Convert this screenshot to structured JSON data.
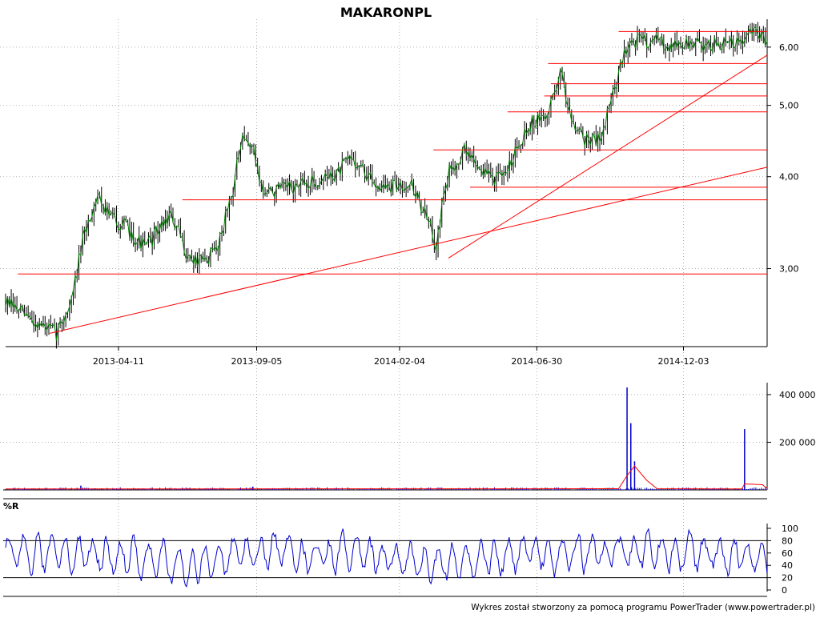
{
  "title": "MAKARONPL",
  "footer": "Wykres został stworzony za pomocą programu PowerTrader (www.powertrader.pl)",
  "colors": {
    "price_up": "#008000",
    "price_bar": "#000000",
    "lines": "#ff0000",
    "volume": "#0000cc",
    "volume_avg": "#ff0000",
    "williams": "#0000cc",
    "grid": "#b0b0b0"
  },
  "chart_data": [
    {
      "type": "line",
      "panel": "price",
      "title": "MAKARONPL",
      "y_scale": "log",
      "ylim": [
        2.35,
        6.45
      ],
      "y_ticks": [
        3,
        4,
        5,
        6
      ],
      "y_tick_labels": [
        "3,00",
        "4,00",
        "5,00",
        "6,00"
      ],
      "x_range": [
        "2012-12-12",
        "2015-03-02"
      ],
      "x_ticks": [
        "2013-04-11",
        "2013-09-05",
        "2014-02-04",
        "2014-06-30",
        "2014-12-03"
      ],
      "grid": true,
      "series": [
        {
          "x": [
            "2012-12-12",
            "2013-01-10",
            "2013-02-04",
            "2013-02-20",
            "2013-03-05",
            "2013-03-20",
            "2013-04-01",
            "2013-04-15",
            "2013-05-10",
            "2013-06-05",
            "2013-06-25",
            "2013-07-10",
            "2013-07-25",
            "2013-08-10",
            "2013-08-20",
            "2013-08-30",
            "2013-09-12",
            "2013-10-10",
            "2013-11-10",
            "2013-12-01",
            "2013-12-15",
            "2014-01-05",
            "2014-01-25",
            "2014-02-15",
            "2014-03-03",
            "2014-03-15",
            "2014-03-28",
            "2014-04-15",
            "2014-05-05",
            "2014-05-25",
            "2014-06-10",
            "2014-06-25",
            "2014-07-10",
            "2014-07-25",
            "2014-08-05",
            "2014-08-20",
            "2014-09-05",
            "2014-09-20",
            "2014-10-05",
            "2014-10-20",
            "2014-11-05",
            "2014-11-20",
            "2014-12-05",
            "2014-12-20",
            "2015-01-10",
            "2015-01-30",
            "2015-02-15",
            "2015-02-28"
          ],
          "values": [
            2.7,
            2.55,
            2.45,
            2.7,
            3.3,
            3.8,
            3.55,
            3.45,
            3.2,
            3.55,
            3.1,
            3.05,
            3.2,
            3.8,
            4.45,
            4.45,
            3.8,
            3.85,
            3.95,
            4.05,
            4.25,
            3.95,
            3.85,
            3.95,
            3.55,
            3.25,
            4.05,
            4.35,
            4.05,
            3.95,
            4.45,
            4.75,
            4.8,
            5.55,
            4.85,
            4.5,
            4.5,
            5.2,
            6.1,
            6.15,
            6.1,
            6.05,
            6.05,
            6.05,
            6.05,
            6.05,
            6.3,
            6.15
          ]
        }
      ],
      "lines": [
        {
          "kind": "trend",
          "from": [
            "2013-01-28",
            2.45
          ],
          "to": [
            "2015-03-02",
            4.12
          ]
        },
        {
          "kind": "trend",
          "from": [
            "2014-03-28",
            3.1
          ],
          "to": [
            "2015-03-02",
            5.85
          ]
        },
        {
          "kind": "level",
          "value": 2.95,
          "from": "2012-12-25",
          "to": "2015-03-02"
        },
        {
          "kind": "level",
          "value": 3.72,
          "from": "2013-06-18",
          "to": "2015-03-02"
        },
        {
          "kind": "level",
          "value": 3.87,
          "from": "2014-04-20",
          "to": "2015-03-02"
        },
        {
          "kind": "level",
          "value": 4.35,
          "from": "2014-03-12",
          "to": "2015-03-02"
        },
        {
          "kind": "level",
          "value": 4.9,
          "from": "2014-05-30",
          "to": "2015-03-02"
        },
        {
          "kind": "level",
          "value": 5.15,
          "from": "2014-07-08",
          "to": "2015-03-02"
        },
        {
          "kind": "level",
          "value": 5.35,
          "from": "2014-07-15",
          "to": "2015-03-02"
        },
        {
          "kind": "level",
          "value": 5.7,
          "from": "2014-07-12",
          "to": "2015-03-02"
        },
        {
          "kind": "level",
          "value": 6.3,
          "from": "2014-09-25",
          "to": "2015-03-02"
        }
      ]
    },
    {
      "type": "bar",
      "panel": "volume",
      "ylim": [
        0,
        450000
      ],
      "y_ticks": [
        200000,
        400000
      ],
      "y_tick_labels": [
        "200 000",
        "400 000"
      ],
      "spikes": [
        {
          "x": "2014-10-04",
          "value": 430000
        },
        {
          "x": "2014-10-08",
          "value": 280000
        },
        {
          "x": "2014-10-12",
          "value": 120000
        },
        {
          "x": "2015-02-06",
          "value": 255000
        },
        {
          "x": "2013-03-02",
          "value": 18000
        },
        {
          "x": "2013-09-01",
          "value": 14000
        }
      ],
      "baseline_volume": 6000,
      "moving_average": [
        {
          "x": "2012-12-12",
          "value": 4000
        },
        {
          "x": "2014-09-25",
          "value": 5000
        },
        {
          "x": "2014-10-04",
          "value": 60000
        },
        {
          "x": "2014-10-12",
          "value": 100000
        },
        {
          "x": "2014-10-25",
          "value": 40000
        },
        {
          "x": "2014-11-05",
          "value": 5000
        },
        {
          "x": "2015-02-03",
          "value": 4000
        },
        {
          "x": "2015-02-06",
          "value": 25000
        },
        {
          "x": "2015-02-25",
          "value": 22000
        },
        {
          "x": "2015-03-02",
          "value": 6000
        }
      ]
    },
    {
      "type": "line",
      "panel": "oscillator",
      "title": "%R",
      "ylim": [
        0,
        100
      ],
      "y_ticks": [
        0,
        20,
        40,
        60,
        80,
        100
      ],
      "y_tick_labels": [
        "0",
        "20",
        "40",
        "60",
        "80",
        "100"
      ],
      "reference_lines": [
        20,
        80
      ],
      "series": [
        {
          "x": [
            "2012-12-12",
            "2013-03-05",
            "2013-06-25",
            "2013-08-25",
            "2013-12-15",
            "2014-03-10",
            "2014-06-25",
            "2014-09-28",
            "2014-12-20",
            "2015-02-28"
          ],
          "values": [
            80,
            95,
            15,
            95,
            85,
            10,
            90,
            98,
            85,
            60
          ]
        }
      ]
    }
  ]
}
